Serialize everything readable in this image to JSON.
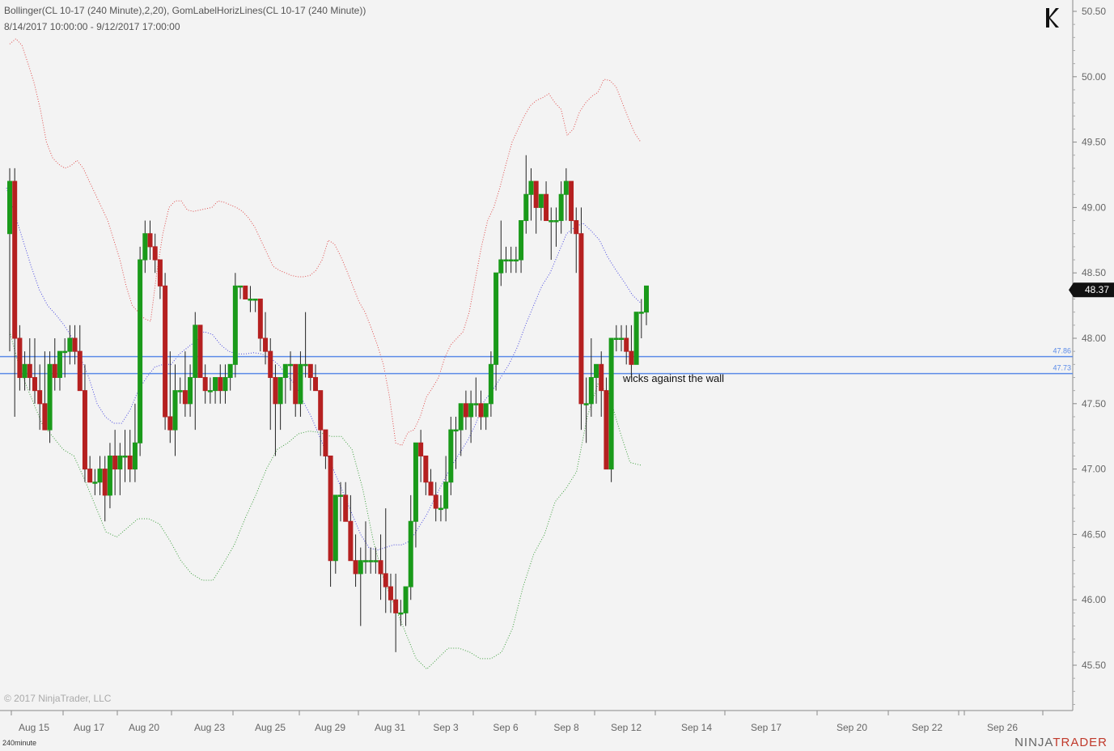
{
  "header": {
    "line1": "Bollinger(CL 10-17 (240 Minute),2,20), GomLabelHorizLines(CL 10-17 (240 Minute))",
    "line2": "8/14/2017 10:00:00 - 9/12/2017 17:00:00"
  },
  "footer": {
    "copyright": "© 2017 NinjaTrader, LLC",
    "timeframe": "240minute",
    "brand_left": "NINJA",
    "brand_right": "TRADER"
  },
  "colors": {
    "up": "#1a9a1a",
    "down": "#b52020",
    "upper_band": "#e05050",
    "middle_band": "#4a4ae0",
    "lower_band": "#40a040",
    "horiz_line": "#5b8be8"
  },
  "chart_data": {
    "type": "candlestick",
    "instrument": "CL 10-17",
    "ylim": [
      45.15,
      50.6
    ],
    "y_ticks": [
      "50.50",
      "50.00",
      "49.50",
      "49.00",
      "48.50",
      "48.00",
      "47.50",
      "47.00",
      "46.50",
      "46.00",
      "45.50"
    ],
    "x_labels": [
      "Aug 15",
      "Aug 17",
      "Aug 20",
      "Aug 23",
      "Aug 25",
      "Aug 29",
      "Aug 31",
      "Sep 3",
      "Sep 6",
      "Sep 8",
      "Sep 12",
      "Sep 14",
      "Sep 17",
      "Sep 20",
      "Sep 22",
      "Sep 26"
    ],
    "last_price": "48.37",
    "horizontal_lines": [
      {
        "label": "47.86",
        "value": 47.86
      },
      {
        "label": "47.73",
        "value": 47.73
      }
    ],
    "annotation": "wicks against the wall",
    "candles": [
      [
        48.8,
        49.3,
        47.9,
        49.2
      ],
      [
        49.2,
        49.3,
        47.4,
        48.0
      ],
      [
        48.0,
        48.1,
        47.6,
        47.7
      ],
      [
        47.7,
        47.9,
        47.6,
        47.8
      ],
      [
        47.8,
        48.0,
        47.6,
        47.7
      ],
      [
        47.7,
        48.0,
        47.5,
        47.6
      ],
      [
        47.6,
        47.8,
        47.3,
        47.5
      ],
      [
        47.5,
        47.9,
        47.3,
        47.3
      ],
      [
        47.3,
        47.9,
        47.2,
        47.8
      ],
      [
        47.8,
        48.0,
        47.6,
        47.7
      ],
      [
        47.7,
        47.9,
        47.6,
        47.9
      ],
      [
        47.9,
        48.0,
        47.7,
        47.9
      ],
      [
        47.9,
        48.1,
        47.8,
        48.0
      ],
      [
        48.0,
        48.1,
        47.8,
        47.9
      ],
      [
        47.9,
        48.1,
        47.6,
        47.6
      ],
      [
        47.6,
        47.8,
        46.9,
        47.0
      ],
      [
        47.0,
        47.1,
        46.9,
        46.9
      ],
      [
        46.9,
        47.0,
        46.8,
        46.9
      ],
      [
        46.9,
        47.1,
        46.8,
        47.0
      ],
      [
        47.0,
        47.1,
        46.6,
        46.8
      ],
      [
        46.8,
        47.2,
        46.7,
        47.1
      ],
      [
        47.1,
        47.3,
        46.8,
        47.0
      ],
      [
        47.0,
        47.2,
        46.8,
        47.1
      ],
      [
        47.1,
        47.3,
        46.9,
        47.1
      ],
      [
        47.1,
        47.3,
        46.9,
        47.0
      ],
      [
        47.0,
        47.5,
        46.9,
        47.2
      ],
      [
        47.2,
        48.7,
        47.1,
        48.6
      ],
      [
        48.6,
        48.9,
        48.5,
        48.8
      ],
      [
        48.8,
        48.9,
        48.6,
        48.7
      ],
      [
        48.7,
        48.8,
        48.5,
        48.6
      ],
      [
        48.6,
        48.6,
        48.3,
        48.4
      ],
      [
        48.4,
        48.5,
        47.3,
        47.4
      ],
      [
        47.4,
        47.9,
        47.2,
        47.3
      ],
      [
        47.3,
        47.8,
        47.1,
        47.6
      ],
      [
        47.6,
        47.7,
        47.5,
        47.6
      ],
      [
        47.6,
        47.9,
        47.4,
        47.5
      ],
      [
        47.5,
        47.8,
        47.4,
        47.7
      ],
      [
        47.7,
        48.2,
        47.3,
        48.1
      ],
      [
        48.1,
        48.1,
        47.7,
        47.7
      ],
      [
        47.7,
        47.8,
        47.5,
        47.6
      ],
      [
        47.6,
        47.7,
        47.5,
        47.6
      ],
      [
        47.6,
        47.7,
        47.5,
        47.7
      ],
      [
        47.7,
        47.8,
        47.5,
        47.6
      ],
      [
        47.6,
        47.8,
        47.5,
        47.7
      ],
      [
        47.7,
        47.8,
        47.6,
        47.8
      ],
      [
        47.8,
        48.5,
        47.7,
        48.4
      ],
      [
        48.4,
        48.4,
        48.3,
        48.4
      ],
      [
        48.4,
        48.4,
        48.3,
        48.3
      ],
      [
        48.3,
        48.4,
        48.2,
        48.3
      ],
      [
        48.3,
        48.3,
        48.2,
        48.3
      ],
      [
        48.3,
        48.3,
        47.9,
        48.0
      ],
      [
        48.0,
        48.2,
        47.8,
        47.9
      ],
      [
        47.9,
        48.0,
        47.3,
        47.7
      ],
      [
        47.7,
        47.8,
        47.1,
        47.5
      ],
      [
        47.5,
        47.7,
        47.3,
        47.7
      ],
      [
        47.7,
        47.8,
        47.5,
        47.8
      ],
      [
        47.8,
        47.9,
        47.6,
        47.8
      ],
      [
        47.8,
        47.8,
        47.4,
        47.5
      ],
      [
        47.5,
        47.9,
        47.4,
        47.8
      ],
      [
        47.8,
        48.2,
        47.7,
        47.8
      ],
      [
        47.8,
        47.8,
        47.6,
        47.7
      ],
      [
        47.7,
        47.8,
        47.6,
        47.6
      ],
      [
        47.6,
        47.6,
        47.1,
        47.3
      ],
      [
        47.3,
        47.3,
        47.0,
        47.1
      ],
      [
        47.1,
        47.1,
        46.1,
        46.3
      ],
      [
        46.3,
        46.8,
        46.2,
        46.8
      ],
      [
        46.8,
        46.9,
        46.6,
        46.8
      ],
      [
        46.8,
        46.9,
        46.6,
        46.6
      ],
      [
        46.6,
        46.8,
        46.3,
        46.3
      ],
      [
        46.3,
        46.5,
        46.1,
        46.2
      ],
      [
        46.2,
        46.4,
        45.8,
        46.3
      ],
      [
        46.3,
        46.6,
        46.2,
        46.3
      ],
      [
        46.3,
        46.4,
        46.2,
        46.3
      ],
      [
        46.3,
        46.4,
        46.2,
        46.3
      ],
      [
        46.3,
        46.5,
        46.0,
        46.2
      ],
      [
        46.2,
        46.7,
        45.9,
        46.1
      ],
      [
        46.1,
        46.2,
        45.9,
        46.0
      ],
      [
        46.0,
        46.2,
        45.6,
        45.9
      ],
      [
        45.9,
        46.0,
        45.8,
        45.9
      ],
      [
        45.9,
        46.1,
        45.8,
        46.1
      ],
      [
        46.1,
        46.8,
        46.0,
        46.6
      ],
      [
        46.6,
        47.2,
        46.4,
        47.2
      ],
      [
        47.2,
        47.3,
        46.9,
        47.1
      ],
      [
        47.1,
        47.1,
        46.8,
        46.9
      ],
      [
        46.9,
        47.0,
        46.8,
        46.8
      ],
      [
        46.8,
        46.9,
        46.6,
        46.7
      ],
      [
        46.7,
        46.8,
        46.6,
        46.7
      ],
      [
        46.7,
        47.1,
        46.6,
        46.9
      ],
      [
        46.9,
        47.4,
        46.8,
        47.3
      ],
      [
        47.3,
        47.4,
        47.0,
        47.3
      ],
      [
        47.3,
        47.5,
        47.1,
        47.5
      ],
      [
        47.5,
        47.6,
        47.3,
        47.4
      ],
      [
        47.4,
        47.6,
        47.2,
        47.5
      ],
      [
        47.5,
        47.7,
        47.4,
        47.5
      ],
      [
        47.5,
        47.6,
        47.3,
        47.4
      ],
      [
        47.4,
        47.5,
        47.3,
        47.5
      ],
      [
        47.5,
        47.9,
        47.4,
        47.8
      ],
      [
        47.8,
        48.5,
        47.6,
        48.5
      ],
      [
        48.5,
        48.9,
        48.4,
        48.6
      ],
      [
        48.6,
        48.7,
        48.5,
        48.6
      ],
      [
        48.6,
        48.7,
        48.5,
        48.6
      ],
      [
        48.6,
        48.7,
        48.5,
        48.6
      ],
      [
        48.6,
        48.9,
        48.5,
        48.9
      ],
      [
        48.9,
        49.4,
        48.8,
        49.1
      ],
      [
        49.1,
        49.3,
        48.9,
        49.2
      ],
      [
        49.2,
        49.2,
        48.8,
        49.0
      ],
      [
        49.0,
        49.1,
        48.9,
        49.1
      ],
      [
        49.1,
        49.2,
        48.9,
        48.9
      ],
      [
        48.9,
        49.0,
        48.6,
        48.9
      ],
      [
        48.9,
        49.0,
        48.7,
        48.9
      ],
      [
        48.9,
        49.2,
        48.8,
        49.1
      ],
      [
        49.1,
        49.3,
        48.9,
        49.2
      ],
      [
        49.2,
        49.2,
        48.8,
        48.9
      ],
      [
        48.9,
        49.0,
        48.5,
        48.8
      ],
      [
        48.8,
        49.0,
        47.3,
        47.5
      ],
      [
        47.5,
        47.7,
        47.2,
        47.5
      ],
      [
        47.5,
        48.0,
        47.4,
        47.7
      ],
      [
        47.7,
        47.8,
        47.5,
        47.8
      ],
      [
        47.8,
        47.9,
        47.4,
        47.6
      ],
      [
        47.6,
        47.7,
        47.0,
        47.0
      ],
      [
        47.0,
        48.0,
        46.9,
        48.0
      ],
      [
        48.0,
        48.1,
        47.9,
        48.0
      ],
      [
        48.0,
        48.1,
        47.9,
        48.0
      ],
      [
        48.0,
        48.1,
        47.8,
        47.9
      ],
      [
        47.9,
        48.1,
        47.7,
        47.8
      ],
      [
        47.8,
        48.2,
        47.8,
        48.2
      ],
      [
        48.2,
        48.3,
        48.0,
        48.2
      ],
      [
        48.2,
        48.4,
        48.1,
        48.4
      ]
    ],
    "series": [
      {
        "name": "Upper",
        "values": [
          50.25,
          50.29,
          50.24,
          50.1,
          49.95,
          49.75,
          49.5,
          49.38,
          49.33,
          49.3,
          49.32,
          49.36,
          49.3,
          49.2,
          49.1,
          49.0,
          48.9,
          48.75,
          48.6,
          48.4,
          48.25,
          48.2,
          48.15,
          48.13,
          48.5,
          48.8,
          49.0,
          49.05,
          49.05,
          48.98,
          48.97,
          48.98,
          48.99,
          49.0,
          49.05,
          49.04,
          49.02,
          49.0,
          48.97,
          48.92,
          48.85,
          48.75,
          48.65,
          48.55,
          48.52,
          48.5,
          48.48,
          48.47,
          48.47,
          48.48,
          48.52,
          48.6,
          48.75,
          48.72,
          48.63,
          48.52,
          48.4,
          48.28,
          48.2,
          48.08,
          47.95,
          47.8,
          47.55,
          47.2,
          47.18,
          47.28,
          47.3,
          47.4,
          47.55,
          47.62,
          47.7,
          47.85,
          47.95,
          48.0,
          48.05,
          48.2,
          48.45,
          48.7,
          48.9,
          49.0,
          49.15,
          49.33,
          49.5,
          49.6,
          49.7,
          49.78,
          49.82,
          49.84,
          49.87,
          49.8,
          49.75,
          49.55,
          49.6,
          49.73,
          49.8,
          49.85,
          49.88,
          49.98,
          49.97,
          49.92,
          49.8,
          49.68,
          49.57,
          49.5
        ]
      },
      {
        "name": "Middle",
        "values": [
          49.15,
          48.95,
          48.75,
          48.55,
          48.37,
          48.25,
          48.18,
          48.1,
          48.0,
          47.85,
          47.7,
          47.5,
          47.4,
          47.35,
          47.35,
          47.45,
          47.6,
          47.7,
          47.78,
          47.8,
          47.8,
          47.88,
          47.93,
          47.98,
          48.05,
          48.03,
          47.95,
          47.9,
          47.88,
          47.88,
          47.89,
          47.88,
          47.85,
          47.8,
          47.72,
          47.65,
          47.52,
          47.4,
          47.25,
          47.1,
          46.95,
          46.8,
          46.65,
          46.5,
          46.4,
          46.38,
          46.4,
          46.42,
          46.42,
          46.45,
          46.55,
          46.65,
          46.78,
          46.9,
          47.02,
          47.12,
          47.22,
          47.35,
          47.52,
          47.6,
          47.7,
          47.8,
          47.93,
          48.1,
          48.25,
          48.4,
          48.5,
          48.65,
          48.8,
          48.85,
          48.88,
          48.82,
          48.75,
          48.62,
          48.52,
          48.43,
          48.33,
          48.27
        ]
      },
      {
        "name": "Lower",
        "values": [
          48.05,
          47.75,
          47.55,
          47.35,
          47.25,
          47.15,
          47.1,
          46.92,
          46.72,
          46.52,
          46.48,
          46.55,
          46.62,
          46.62,
          46.58,
          46.45,
          46.3,
          46.2,
          46.15,
          46.15,
          46.28,
          46.42,
          46.62,
          46.8,
          47.0,
          47.15,
          47.2,
          47.27,
          47.29,
          47.28,
          47.25,
          47.25,
          47.15,
          46.85,
          46.45,
          46.15,
          45.95,
          45.75,
          45.55,
          45.47,
          45.55,
          45.63,
          45.63,
          45.6,
          45.55,
          45.55,
          45.6,
          45.78,
          46.1,
          46.35,
          46.5,
          46.75,
          46.85,
          46.98,
          47.4,
          47.65,
          47.58,
          47.3,
          47.05,
          47.03
        ]
      }
    ]
  }
}
